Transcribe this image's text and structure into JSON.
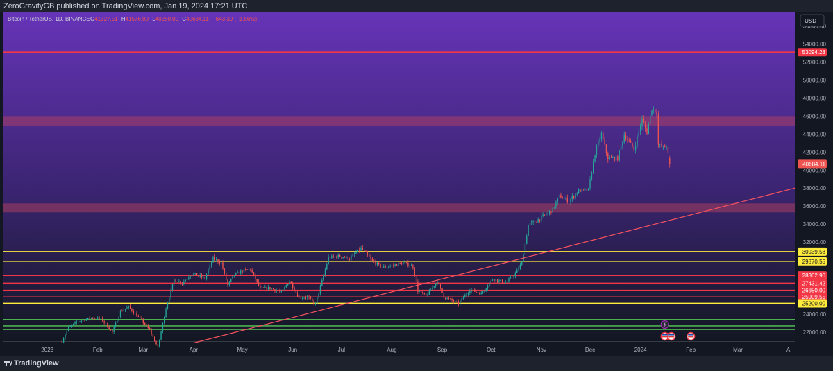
{
  "header": {
    "published": "ZeroGravityGB published on TradingView.com, Jan 19, 2024 17:21 UTC"
  },
  "legend": {
    "symbol": "Bitcoin / TetherUS, 1D, BINANCE",
    "o_label": "O",
    "o_value": "41327.51",
    "h_label": "H",
    "h_value": "41576.00",
    "l_label": "L",
    "l_value": "40280.00",
    "c_label": "C",
    "c_value": "40684.11",
    "change": "−643.39 (−1.56%)"
  },
  "currency_button": "USDT",
  "footer": {
    "brand": "TradingView"
  },
  "colors": {
    "bg_top": "#6634b8",
    "bg_bottom": "#131722",
    "up": "#26a69a",
    "down": "#ef5350",
    "line_red": "#f23645",
    "line_yellow": "#ffeb3b",
    "line_green": "#4caf50",
    "trend": "#f7525f",
    "zone": "#c2445a"
  },
  "chart_data": {
    "type": "candlestick",
    "symbol": "Bitcoin / TetherUS",
    "interval": "1D",
    "exchange": "BINANCE",
    "ylim": [
      21000,
      57500
    ],
    "y_ticks": [
      22000,
      24000,
      26000,
      28000,
      30000,
      32000,
      34000,
      36000,
      38000,
      40000,
      42000,
      44000,
      46000,
      48000,
      50000,
      52000,
      54000,
      56000
    ],
    "y_tick_labels": [
      "22000.00",
      "24000.00",
      "26000.00",
      "28000.00",
      "30000.00",
      "32000.00",
      "34000.00",
      "36000.00",
      "38000.00",
      "40000.00",
      "42000.00",
      "44000.00",
      "46000.00",
      "48000.00",
      "50000.00",
      "52000.00",
      "54000.00",
      "56000.00"
    ],
    "x_labels": [
      {
        "date": "2023-01-01",
        "label": "2023"
      },
      {
        "date": "2023-02-01",
        "label": "Feb"
      },
      {
        "date": "2023-03-01",
        "label": "Mar"
      },
      {
        "date": "2023-04-01",
        "label": "Apr"
      },
      {
        "date": "2023-05-01",
        "label": "May"
      },
      {
        "date": "2023-06-01",
        "label": "Jun"
      },
      {
        "date": "2023-07-01",
        "label": "Jul"
      },
      {
        "date": "2023-08-01",
        "label": "Aug"
      },
      {
        "date": "2023-09-01",
        "label": "Sep"
      },
      {
        "date": "2023-10-01",
        "label": "Oct"
      },
      {
        "date": "2023-11-01",
        "label": "Nov"
      },
      {
        "date": "2023-12-01",
        "label": "Dec"
      },
      {
        "date": "2024-01-01",
        "label": "2024"
      },
      {
        "date": "2024-02-01",
        "label": "Feb"
      },
      {
        "date": "2024-03-01",
        "label": "Mar"
      },
      {
        "date": "2024-04-01",
        "label": "A"
      }
    ],
    "x_range": [
      "2022-12-05",
      "2024-04-05"
    ],
    "price_path": [
      [
        "2023-01-10",
        21000
      ],
      [
        "2023-01-14",
        22500
      ],
      [
        "2023-01-20",
        23200
      ],
      [
        "2023-01-28",
        23600
      ],
      [
        "2023-02-03",
        23500
      ],
      [
        "2023-02-10",
        22000
      ],
      [
        "2023-02-15",
        24300
      ],
      [
        "2023-02-20",
        24800
      ],
      [
        "2023-02-28",
        23300
      ],
      [
        "2023-03-05",
        22200
      ],
      [
        "2023-03-10",
        20300
      ],
      [
        "2023-03-15",
        24700
      ],
      [
        "2023-03-20",
        27800
      ],
      [
        "2023-03-25",
        27500
      ],
      [
        "2023-03-31",
        28500
      ],
      [
        "2023-04-08",
        28000
      ],
      [
        "2023-04-13",
        30200
      ],
      [
        "2023-04-18",
        29700
      ],
      [
        "2023-04-22",
        27200
      ],
      [
        "2023-04-26",
        28400
      ],
      [
        "2023-05-01",
        28800
      ],
      [
        "2023-05-06",
        29000
      ],
      [
        "2023-05-12",
        26800
      ],
      [
        "2023-05-18",
        26900
      ],
      [
        "2023-05-25",
        26400
      ],
      [
        "2023-05-30",
        27700
      ],
      [
        "2023-06-05",
        25800
      ],
      [
        "2023-06-10",
        25900
      ],
      [
        "2023-06-15",
        25100
      ],
      [
        "2023-06-20",
        28300
      ],
      [
        "2023-06-23",
        30300
      ],
      [
        "2023-06-30",
        30450
      ],
      [
        "2023-07-06",
        30200
      ],
      [
        "2023-07-13",
        31300
      ],
      [
        "2023-07-20",
        29900
      ],
      [
        "2023-07-26",
        29200
      ],
      [
        "2023-08-01",
        29400
      ],
      [
        "2023-08-08",
        29700
      ],
      [
        "2023-08-14",
        29300
      ],
      [
        "2023-08-17",
        26600
      ],
      [
        "2023-08-22",
        26000
      ],
      [
        "2023-08-29",
        27700
      ],
      [
        "2023-09-02",
        25900
      ],
      [
        "2023-09-11",
        25200
      ],
      [
        "2023-09-18",
        26700
      ],
      [
        "2023-09-25",
        26300
      ],
      [
        "2023-10-02",
        27900
      ],
      [
        "2023-10-10",
        27500
      ],
      [
        "2023-10-16",
        28500
      ],
      [
        "2023-10-20",
        29700
      ],
      [
        "2023-10-24",
        33900
      ],
      [
        "2023-10-30",
        34500
      ],
      [
        "2023-11-08",
        35600
      ],
      [
        "2023-11-12",
        37100
      ],
      [
        "2023-11-18",
        36600
      ],
      [
        "2023-11-24",
        37700
      ],
      [
        "2023-11-30",
        37800
      ],
      [
        "2023-12-04",
        41900
      ],
      [
        "2023-12-08",
        44000
      ],
      [
        "2023-12-12",
        41300
      ],
      [
        "2023-12-18",
        41300
      ],
      [
        "2023-12-22",
        43900
      ],
      [
        "2023-12-28",
        42300
      ],
      [
        "2024-01-02",
        45600
      ],
      [
        "2024-01-05",
        44200
      ],
      [
        "2024-01-08",
        46900
      ],
      [
        "2024-01-11",
        46400
      ],
      [
        "2024-01-12",
        42800
      ],
      [
        "2024-01-15",
        42500
      ],
      [
        "2024-01-17",
        42700
      ],
      [
        "2024-01-19",
        40684.11
      ]
    ],
    "last": {
      "date": "2024-01-19",
      "open": 41327.51,
      "high": 41576.0,
      "low": 40280.0,
      "close": 40684.11
    },
    "horizontal_levels": [
      {
        "price": 53094.28,
        "label": "53094.28",
        "color": "red"
      },
      {
        "price": 30939.58,
        "label": "30939.58",
        "color": "yellow"
      },
      {
        "price": 29870.55,
        "label": "29870.55",
        "color": "yellow"
      },
      {
        "price": 28302.9,
        "label": "28302.90",
        "color": "red"
      },
      {
        "price": 27431.42,
        "label": "27431.42",
        "color": "red"
      },
      {
        "price": 26650.0,
        "label": "26650.00",
        "color": "red"
      },
      {
        "price": 25909.55,
        "label": "25909.55",
        "color": "red"
      },
      {
        "price": 25200.0,
        "label": "25200.00",
        "color": "yellow"
      }
    ],
    "unlabeled_levels": [
      {
        "price": 23400,
        "color": "green"
      },
      {
        "price": 22700,
        "color": "green"
      },
      {
        "price": 22300,
        "color": "green"
      }
    ],
    "zones": [
      {
        "from": 44950,
        "to": 46000
      },
      {
        "from": 35300,
        "to": 36300
      }
    ],
    "trendline": {
      "from": [
        "2023-04-01",
        20800
      ],
      "to": [
        "2024-04-05",
        38000
      ]
    },
    "current_price": {
      "price": 40684.11,
      "label": "40684.11"
    },
    "event_icons": [
      {
        "date": "2024-01-16",
        "row": 1,
        "kind": "lightning-icon"
      },
      {
        "date": "2024-01-16",
        "row": 2,
        "kind": "us-flag-icon"
      },
      {
        "date": "2024-01-20",
        "row": 2,
        "kind": "us-flag-icon"
      },
      {
        "date": "2024-02-01",
        "row": 2,
        "kind": "us-flag-icon"
      }
    ]
  }
}
